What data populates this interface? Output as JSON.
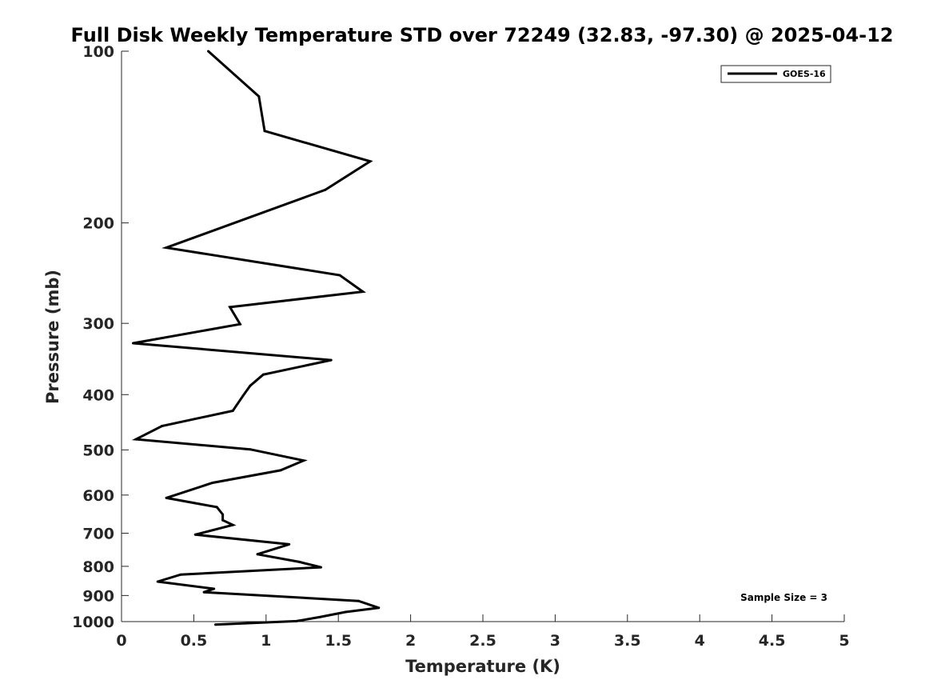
{
  "chart_data": {
    "type": "line",
    "title": "Full Disk Weekly Temperature STD over 72249 (32.83, -97.30) @ 2025-04-12",
    "xlabel": "Temperature (K)",
    "ylabel": "Pressure (mb)",
    "xlim": [
      0,
      5
    ],
    "ylim": [
      100,
      1000
    ],
    "yscale": "log",
    "y_reversed": true,
    "grid": false,
    "x_ticks": [
      0,
      0.5,
      1,
      1.5,
      2,
      2.5,
      3,
      3.5,
      4,
      4.5,
      5
    ],
    "x_tick_labels": [
      "0",
      "0.5",
      "1",
      "1.5",
      "2",
      "2.5",
      "3",
      "3.5",
      "4",
      "4.5",
      "5"
    ],
    "y_ticks": [
      100,
      200,
      300,
      400,
      500,
      600,
      700,
      800,
      900,
      1000
    ],
    "y_tick_labels": [
      "100",
      "200",
      "300",
      "400",
      "500",
      "600",
      "700",
      "800",
      "900",
      "1000"
    ],
    "legend_position": "top-right",
    "annotation": "Sample Size = 3",
    "line_color": "#000000",
    "series": [
      {
        "name": "GOES-16",
        "x": [
          0.6,
          0.95,
          0.99,
          1.72,
          1.41,
          0.9,
          0.31,
          1.51,
          1.67,
          0.75,
          0.82,
          0.08,
          1.45,
          0.98,
          0.89,
          0.84,
          0.77,
          0.28,
          0.1,
          0.89,
          1.26,
          1.1,
          0.63,
          0.31,
          0.66,
          0.7,
          0.7,
          0.77,
          0.51,
          1.16,
          0.94,
          1.23,
          1.38,
          0.41,
          0.25,
          0.64,
          0.57,
          1.64,
          1.78,
          1.55,
          1.37,
          1.21,
          0.65
        ],
        "y": [
          100,
          120,
          138,
          156,
          175,
          195,
          221,
          247,
          264,
          281,
          301,
          325,
          348,
          369,
          386,
          402,
          427,
          454,
          479,
          499,
          522,
          543,
          571,
          607,
          630,
          649,
          664,
          677,
          704,
          732,
          762,
          786,
          803,
          827,
          851,
          876,
          888,
          920,
          946,
          962,
          982,
          998,
          1012
        ]
      }
    ]
  }
}
